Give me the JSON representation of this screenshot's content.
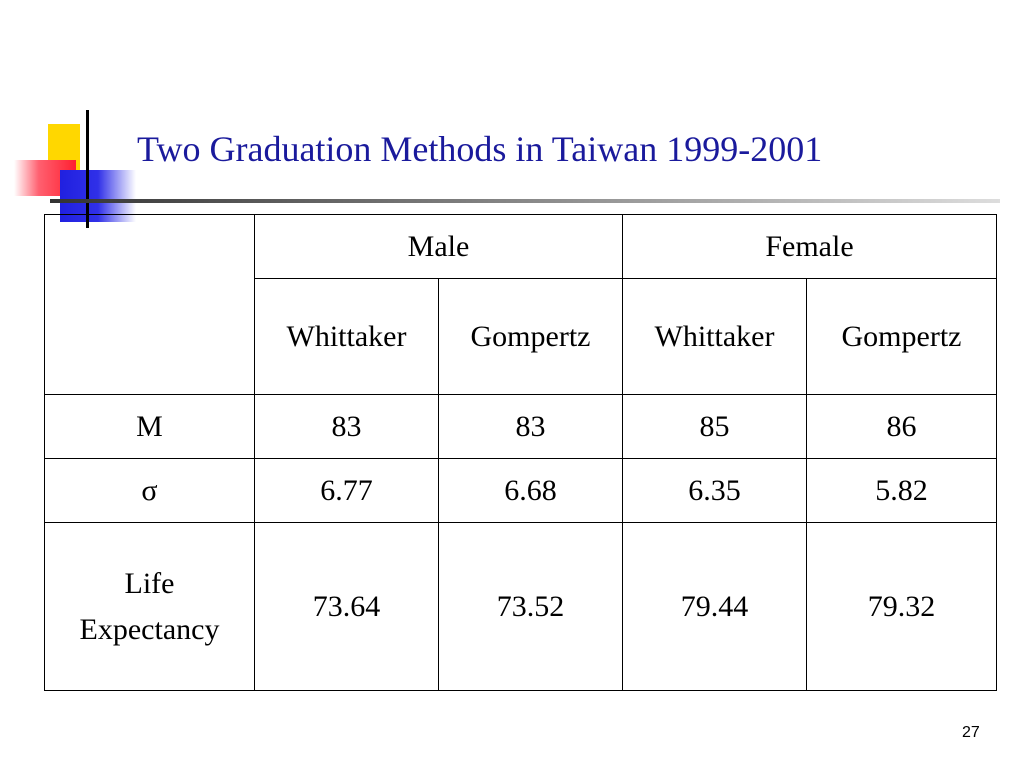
{
  "title": "Two Graduation Methods in Taiwan 1999-2001",
  "table": {
    "groups": [
      "Male",
      "Female"
    ],
    "methods": [
      "Whittaker",
      "Gompertz",
      "Whittaker",
      "Gompertz"
    ],
    "rows": [
      {
        "label": "M",
        "values": [
          83,
          83,
          85,
          86
        ]
      },
      {
        "label": "σ",
        "values": [
          6.77,
          6.68,
          6.35,
          5.82
        ]
      },
      {
        "label": "Life Expectancy",
        "values": [
          73.64,
          73.52,
          79.44,
          79.32
        ]
      }
    ]
  },
  "page_number": "27"
}
